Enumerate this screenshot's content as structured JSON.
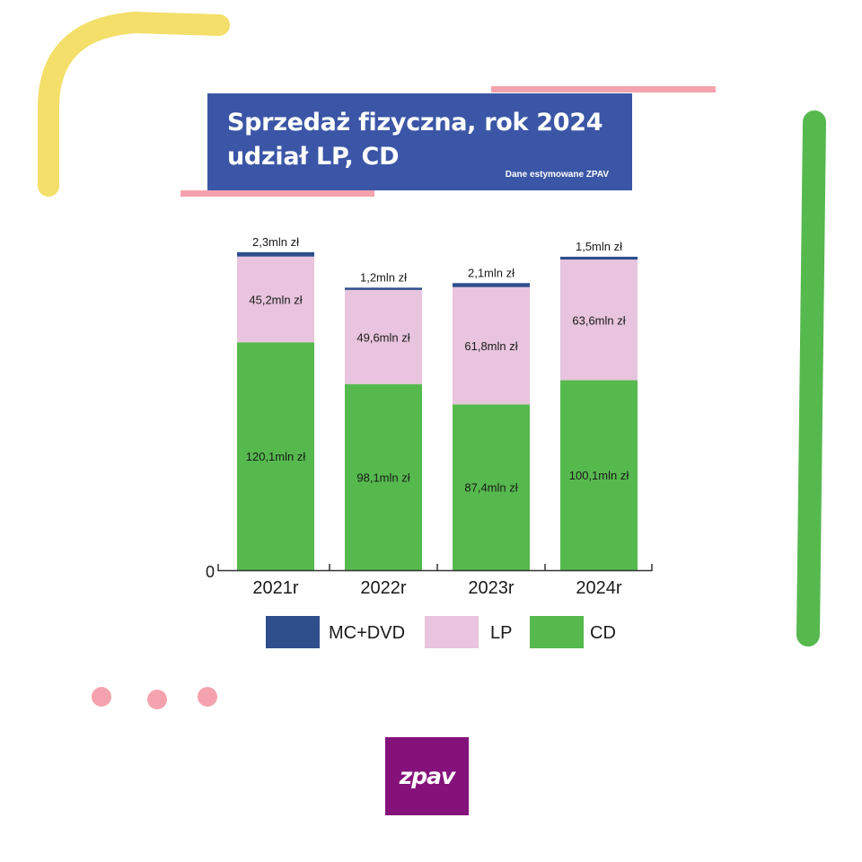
{
  "title": {
    "line1": "Sprzedaż fizyczna, rok 2024",
    "line2": "udział LP, CD",
    "source": "Dane estymowane ZPAV"
  },
  "logo": {
    "text": "zpav"
  },
  "colors": {
    "mc_dvd": "#2e4e8c",
    "lp": "#e8c4de",
    "cd": "#56b94e",
    "title_bg": "#3b56a6",
    "logo_bg": "#85117b",
    "deco_yellow": "#f3df6a",
    "deco_pink": "#f4a3ae",
    "deco_green": "#56b94e"
  },
  "chart_data": {
    "type": "bar",
    "stacked": true,
    "unit": "mln zł",
    "categories": [
      "2021r",
      "2022r",
      "2023r",
      "2024r"
    ],
    "series": [
      {
        "name": "CD",
        "color": "#56b94e",
        "values": [
          120.1,
          98.1,
          87.4,
          100.1
        ],
        "labels": [
          "120,1mln zł",
          "98,1mln zł",
          "87,4mln zł",
          "100,1mln zł"
        ]
      },
      {
        "name": "LP",
        "color": "#e8c4de",
        "values": [
          45.2,
          49.6,
          61.8,
          63.6
        ],
        "labels": [
          "45,2mln zł",
          "49,6mln zł",
          "61,8mln zł",
          "63,6mln zł"
        ]
      },
      {
        "name": "MC+DVD",
        "color": "#2e4e8c",
        "values": [
          2.3,
          1.2,
          2.1,
          1.5
        ],
        "labels": [
          "2,3mln zł",
          "1,2mln zł",
          "2,1mln zł",
          "1,5mln zł"
        ]
      }
    ],
    "legend": [
      "MC+DVD",
      "LP",
      "CD"
    ],
    "y_zero_label": "0",
    "ylim": [
      0,
      168
    ],
    "grid": false,
    "legend_position": "bottom"
  }
}
